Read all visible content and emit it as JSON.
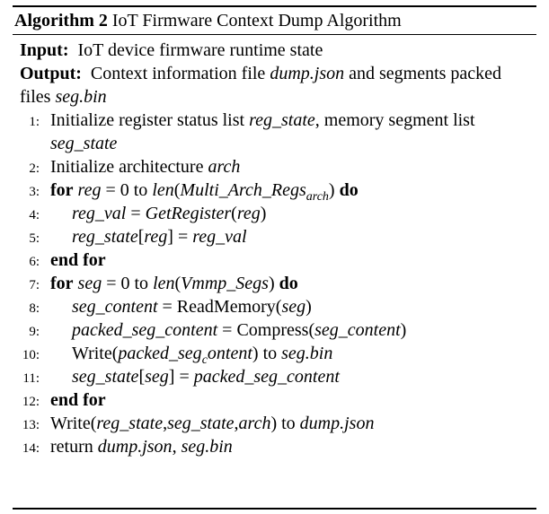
{
  "caption": {
    "label": "Algorithm 2",
    "title": "IoT Firmware Context Dump Algorithm"
  },
  "input": {
    "label": "Input:",
    "text": "IoT device firmware runtime state"
  },
  "output": {
    "label": "Output:",
    "text_1": "Context information file ",
    "file_1": "dump.json",
    "text_2": " and segments packed files ",
    "file_2": "seg.bin"
  },
  "lines": {
    "l1": {
      "num": "1:",
      "a": "Initialize register status list ",
      "b": "reg_state",
      "c": ", memory segment list ",
      "d": "seg_state"
    },
    "l2": {
      "num": "2:",
      "a": "Initialize architecture ",
      "b": "arch"
    },
    "l3": {
      "num": "3:",
      "kw1": "for",
      "a": "reg",
      "b": " = 0 to ",
      "c": "len",
      "d": "(",
      "e": "Multi_Arch_Regs",
      "sub": "arch",
      "f": ")",
      "kw2": "do"
    },
    "l4": {
      "num": "4:",
      "a": "reg_val",
      "b": " = ",
      "c": "GetRegister",
      "d": "(",
      "e": "reg",
      "f": ")"
    },
    "l5": {
      "num": "5:",
      "a": "reg_state",
      "b": "[",
      "c": "reg",
      "d": "] = ",
      "e": "reg_val"
    },
    "l6": {
      "num": "6:",
      "kw": "end for"
    },
    "l7": {
      "num": "7:",
      "kw1": "for",
      "a": "seg",
      "b": " = 0 to ",
      "c": "len",
      "d": "(",
      "e": "Vmmp_Segs",
      "f": ")",
      "kw2": "do"
    },
    "l8": {
      "num": "8:",
      "a": "seg_content",
      "b": " = ReadMemory(",
      "c": "seg",
      "d": ")"
    },
    "l9": {
      "num": "9:",
      "a": "packed_seg_content",
      "b": " = Compress(",
      "c": "seg_content",
      "d": ")"
    },
    "l10": {
      "num": "10:",
      "a": "Write(",
      "b": "packed_seg",
      "sub": "c",
      "c": "ontent",
      "d": ") to ",
      "e": "seg.bin"
    },
    "l11": {
      "num": "11:",
      "a": "seg_state",
      "b": "[",
      "c": "seg",
      "d": "] = ",
      "e": "packed_seg_content"
    },
    "l12": {
      "num": "12:",
      "kw": "end for"
    },
    "l13": {
      "num": "13:",
      "a": "Write(",
      "b": "reg_state",
      "c": ",",
      "d": "seg_state",
      "e": ",",
      "f": "arch",
      "g": ") to ",
      "h": "dump.json"
    },
    "l14": {
      "num": "14:",
      "a": "return ",
      "b": "dump.json",
      "c": ", ",
      "d": "seg.bin"
    }
  }
}
